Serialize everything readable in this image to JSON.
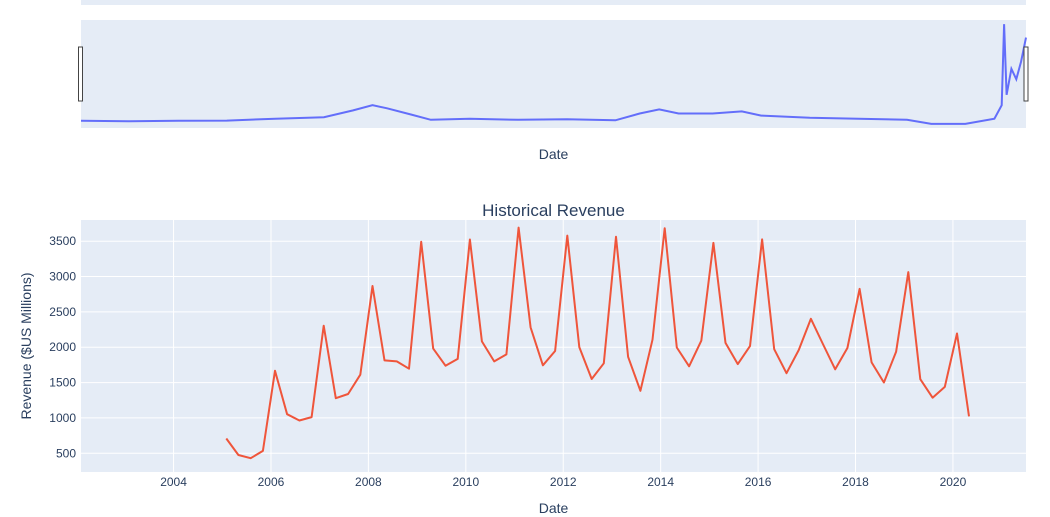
{
  "range_slider": {
    "xlabel": "Date",
    "trace_color": "#636efa",
    "overview_series": [
      [
        2002.0,
        0.05
      ],
      [
        2003.0,
        0.045
      ],
      [
        2004.0,
        0.05
      ],
      [
        2005.0,
        0.052
      ],
      [
        2006.0,
        0.07
      ],
      [
        2007.0,
        0.085
      ],
      [
        2007.6,
        0.15
      ],
      [
        2008.0,
        0.2
      ],
      [
        2008.3,
        0.17
      ],
      [
        2008.8,
        0.11
      ],
      [
        2009.2,
        0.06
      ],
      [
        2010.0,
        0.07
      ],
      [
        2011.0,
        0.06
      ],
      [
        2012.0,
        0.065
      ],
      [
        2013.0,
        0.055
      ],
      [
        2013.5,
        0.12
      ],
      [
        2013.9,
        0.16
      ],
      [
        2014.3,
        0.12
      ],
      [
        2015.0,
        0.12
      ],
      [
        2015.6,
        0.14
      ],
      [
        2016.0,
        0.1
      ],
      [
        2017.0,
        0.08
      ],
      [
        2018.0,
        0.07
      ],
      [
        2019.0,
        0.06
      ],
      [
        2019.5,
        0.02
      ],
      [
        2020.2,
        0.02
      ],
      [
        2020.8,
        0.07
      ],
      [
        2020.95,
        0.2
      ],
      [
        2021.0,
        0.98
      ],
      [
        2021.05,
        0.3
      ],
      [
        2021.15,
        0.55
      ],
      [
        2021.25,
        0.45
      ],
      [
        2021.35,
        0.62
      ],
      [
        2021.45,
        0.85
      ]
    ]
  },
  "chart_data": {
    "type": "line",
    "title": "Historical Revenue",
    "xlabel": "Date",
    "ylabel": "Revenue ($US Millions)",
    "xlim": [
      2002.1,
      2021.5
    ],
    "ylim": [
      235,
      3800
    ],
    "x_ticks": [
      2004,
      2006,
      2008,
      2010,
      2012,
      2014,
      2016,
      2018,
      2020
    ],
    "y_ticks": [
      500,
      1000,
      1500,
      2000,
      2500,
      3000,
      3500
    ],
    "grid": true,
    "line_color": "#ef553b",
    "series": [
      {
        "x": [
          "2005-01-31",
          "2005-04-30",
          "2005-07-31",
          "2005-10-31",
          "2006-01-31",
          "2006-04-30",
          "2006-07-31",
          "2006-10-31",
          "2007-01-31",
          "2007-04-30",
          "2007-07-31",
          "2007-10-31",
          "2008-01-31",
          "2008-04-30",
          "2008-07-31",
          "2008-10-31",
          "2009-01-31",
          "2009-04-30",
          "2009-07-31",
          "2009-10-31",
          "2010-01-31",
          "2010-04-30",
          "2010-07-31",
          "2010-10-31",
          "2011-01-31",
          "2011-04-30",
          "2011-07-31",
          "2011-10-31",
          "2012-01-31",
          "2012-04-30",
          "2012-07-31",
          "2012-10-31",
          "2013-01-31",
          "2013-04-30",
          "2013-07-31",
          "2013-10-31",
          "2014-01-31",
          "2014-04-30",
          "2014-07-31",
          "2014-10-31",
          "2015-01-31",
          "2015-04-30",
          "2015-07-31",
          "2015-10-31",
          "2016-01-31",
          "2016-04-30",
          "2016-07-31",
          "2016-10-31",
          "2017-01-31",
          "2017-04-30",
          "2017-07-31",
          "2017-10-31",
          "2018-01-31",
          "2018-04-30",
          "2018-07-31",
          "2018-10-31",
          "2019-01-31",
          "2019-04-30",
          "2019-07-31",
          "2019-10-31",
          "2020-01-31",
          "2020-04-30"
        ],
        "values": [
          709,
          475,
          430,
          534,
          1667,
          1052,
          963,
          1012,
          2304,
          1279,
          1338,
          1611,
          2866,
          1814,
          1799,
          1696,
          3492,
          1981,
          1739,
          1835,
          3524,
          2083,
          1799,
          1899,
          3693,
          2281,
          1744,
          1947,
          3579,
          2002,
          1550,
          1773,
          3562,
          1865,
          1384,
          2107,
          3684,
          1996,
          1731,
          2092,
          3476,
          2061,
          1762,
          2016,
          3525,
          1972,
          1632,
          1959,
          2403,
          2046,
          1688,
          1989,
          2825,
          1786,
          1501,
          1935,
          3063,
          1548,
          1286,
          1439,
          2194,
          1021
        ]
      }
    ]
  }
}
